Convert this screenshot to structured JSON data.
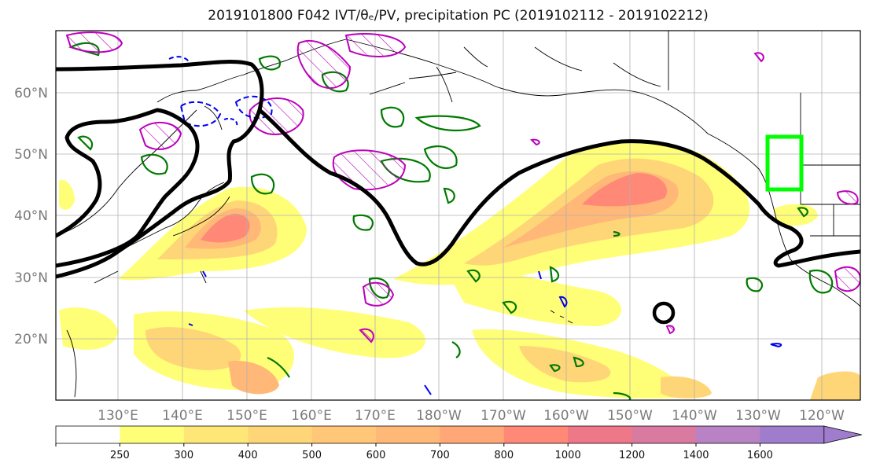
{
  "title": "2019101800 F042 IVT/θₑ/PV, precipitation PC (2019102112 - 2019102212)",
  "map": {
    "lat_labels": [
      "60°N",
      "50°N",
      "40°N",
      "30°N",
      "20°N"
    ],
    "lon_labels": [
      "130°E",
      "140°E",
      "150°E",
      "160°E",
      "170°E",
      "180°W",
      "170°W",
      "160°W",
      "150°W",
      "140°W",
      "130°W",
      "120°W"
    ],
    "grid": true,
    "target_box_color": "#00ff00",
    "contour_colors": {
      "black": "#000000",
      "green": "#007a00",
      "magenta": "#bb00bb",
      "blue": "#0000ee"
    }
  },
  "colorbar": {
    "levels": [
      250,
      300,
      400,
      500,
      600,
      700,
      800,
      1000,
      1200,
      1400,
      1600
    ],
    "labels": [
      "250",
      "300",
      "400",
      "500",
      "600",
      "700",
      "800",
      "1000",
      "1200",
      "1400",
      "1600"
    ],
    "colors": [
      "#ffffff",
      "#fffe77",
      "#ffe777",
      "#ffd677",
      "#ffc777",
      "#ffb877",
      "#ffa777",
      "#ff8877",
      "#ee7788",
      "#d97aa0",
      "#b882c4",
      "#a07ccc"
    ],
    "extend": "max"
  }
}
